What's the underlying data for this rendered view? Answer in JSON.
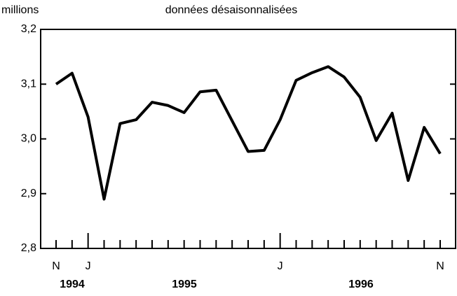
{
  "chart_data": {
    "type": "line",
    "y_label": "millions",
    "subtitle": "données désaisonnalisées",
    "categories": [
      "N",
      null,
      "J",
      null,
      null,
      null,
      null,
      null,
      null,
      null,
      null,
      null,
      null,
      null,
      "J",
      null,
      null,
      null,
      null,
      null,
      null,
      null,
      null,
      null,
      "N"
    ],
    "year_labels": [
      "1994",
      "1995",
      "1996"
    ],
    "series": [
      {
        "name": null,
        "color": "#000000",
        "values": [
          3.1,
          3.12,
          3.04,
          2.89,
          3.028,
          3.035,
          3.067,
          3.061,
          3.048,
          3.086,
          3.089,
          3.033,
          2.977,
          2.979,
          3.035,
          3.107,
          3.121,
          3.132,
          3.113,
          3.076,
          2.997,
          3.047,
          2.924,
          3.021,
          2.973
        ]
      }
    ],
    "ylim": [
      2.8,
      3.2
    ],
    "yticks": [
      {
        "value": 2.8,
        "label": "2,8"
      },
      {
        "value": 2.9,
        "label": "2,9"
      },
      {
        "value": 3.0,
        "label": "3,0"
      },
      {
        "value": 3.1,
        "label": "3,1"
      },
      {
        "value": 3.2,
        "label": "3,2"
      }
    ]
  }
}
